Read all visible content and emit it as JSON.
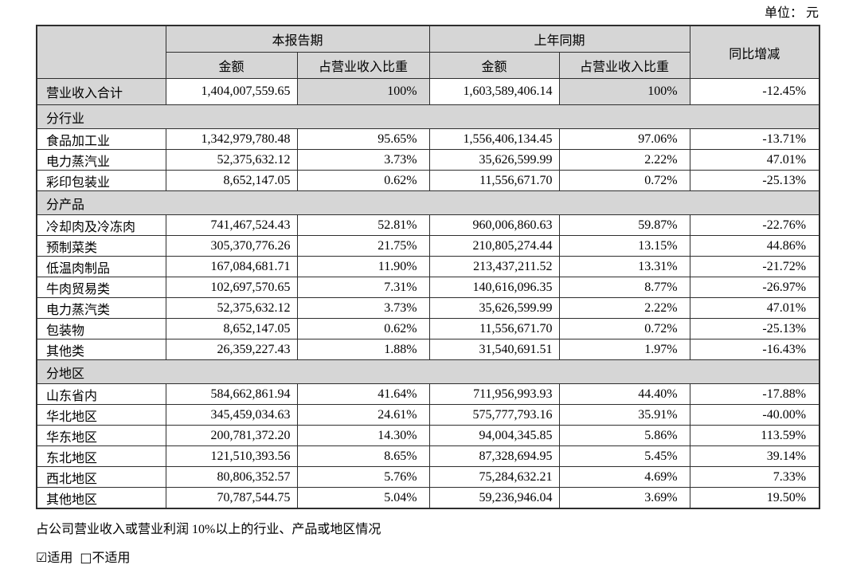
{
  "unit_label": "单位： 元",
  "colors": {
    "shaded_bg": "#d6d6d6",
    "border": "#2e2e2e",
    "text": "#000000"
  },
  "table": {
    "headers": {
      "current_period": "本报告期",
      "prior_period": "上年同期",
      "yoy_change": "同比增减",
      "amount": "金额",
      "pct_of_revenue": "占营业收入比重"
    },
    "total_row": {
      "label": "营业收入合计",
      "cur_amount": "1,404,007,559.65",
      "cur_pct": "100%",
      "prior_amount": "1,603,589,406.14",
      "prior_pct": "100%",
      "yoy": "-12.45%"
    },
    "sections": [
      {
        "title": "分行业",
        "rows": [
          {
            "label": "食品加工业",
            "cur_amount": "1,342,979,780.48",
            "cur_pct": "95.65%",
            "prior_amount": "1,556,406,134.45",
            "prior_pct": "97.06%",
            "yoy": "-13.71%"
          },
          {
            "label": "电力蒸汽业",
            "cur_amount": "52,375,632.12",
            "cur_pct": "3.73%",
            "prior_amount": "35,626,599.99",
            "prior_pct": "2.22%",
            "yoy": "47.01%"
          },
          {
            "label": "彩印包装业",
            "cur_amount": "8,652,147.05",
            "cur_pct": "0.62%",
            "prior_amount": "11,556,671.70",
            "prior_pct": "0.72%",
            "yoy": "-25.13%"
          }
        ]
      },
      {
        "title": "分产品",
        "rows": [
          {
            "label": "冷却肉及冷冻肉",
            "cur_amount": "741,467,524.43",
            "cur_pct": "52.81%",
            "prior_amount": "960,006,860.63",
            "prior_pct": "59.87%",
            "yoy": "-22.76%"
          },
          {
            "label": "预制菜类",
            "cur_amount": "305,370,776.26",
            "cur_pct": "21.75%",
            "prior_amount": "210,805,274.44",
            "prior_pct": "13.15%",
            "yoy": "44.86%"
          },
          {
            "label": "低温肉制品",
            "cur_amount": "167,084,681.71",
            "cur_pct": "11.90%",
            "prior_amount": "213,437,211.52",
            "prior_pct": "13.31%",
            "yoy": "-21.72%"
          },
          {
            "label": "牛肉贸易类",
            "cur_amount": "102,697,570.65",
            "cur_pct": "7.31%",
            "prior_amount": "140,616,096.35",
            "prior_pct": "8.77%",
            "yoy": "-26.97%"
          },
          {
            "label": "电力蒸汽类",
            "cur_amount": "52,375,632.12",
            "cur_pct": "3.73%",
            "prior_amount": "35,626,599.99",
            "prior_pct": "2.22%",
            "yoy": "47.01%"
          },
          {
            "label": "包装物",
            "cur_amount": "8,652,147.05",
            "cur_pct": "0.62%",
            "prior_amount": "11,556,671.70",
            "prior_pct": "0.72%",
            "yoy": "-25.13%"
          },
          {
            "label": "其他类",
            "cur_amount": "26,359,227.43",
            "cur_pct": "1.88%",
            "prior_amount": "31,540,691.51",
            "prior_pct": "1.97%",
            "yoy": "-16.43%"
          }
        ]
      },
      {
        "title": "分地区",
        "rows": [
          {
            "label": "山东省内",
            "cur_amount": "584,662,861.94",
            "cur_pct": "41.64%",
            "prior_amount": "711,956,993.93",
            "prior_pct": "44.40%",
            "yoy": "-17.88%"
          },
          {
            "label": "华北地区",
            "cur_amount": "345,459,034.63",
            "cur_pct": "24.61%",
            "prior_amount": "575,777,793.16",
            "prior_pct": "35.91%",
            "yoy": "-40.00%"
          },
          {
            "label": "华东地区",
            "cur_amount": "200,781,372.20",
            "cur_pct": "14.30%",
            "prior_amount": "94,004,345.85",
            "prior_pct": "5.86%",
            "yoy": "113.59%"
          },
          {
            "label": "东北地区",
            "cur_amount": "121,510,393.56",
            "cur_pct": "8.65%",
            "prior_amount": "87,328,694.95",
            "prior_pct": "5.45%",
            "yoy": "39.14%"
          },
          {
            "label": "西北地区",
            "cur_amount": "80,806,352.57",
            "cur_pct": "5.76%",
            "prior_amount": "75,284,632.21",
            "prior_pct": "4.69%",
            "yoy": "7.33%"
          },
          {
            "label": "其他地区",
            "cur_amount": "70,787,544.75",
            "cur_pct": "5.04%",
            "prior_amount": "59,236,946.04",
            "prior_pct": "3.69%",
            "yoy": "19.50%"
          }
        ]
      }
    ]
  },
  "footer": {
    "line1": "占公司营业收入或营业利润 10%以上的行业、产品或地区情况",
    "applicable_checkbox": "☑",
    "applicable_label": "适用",
    "not_applicable_checkbox": "□",
    "not_applicable_label": "不适用"
  }
}
